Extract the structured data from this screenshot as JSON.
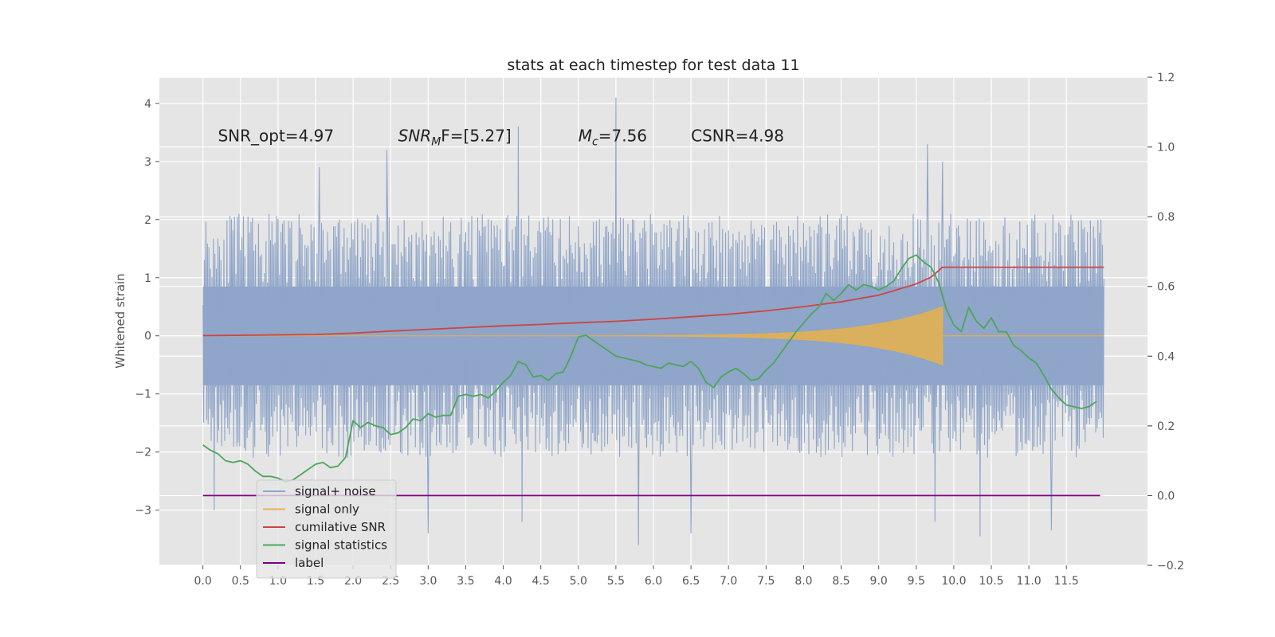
{
  "chart_data": {
    "type": "line",
    "title": "stats at each timestep for test data 11",
    "ylabel": "Whitened strain",
    "xlim": [
      -0.58,
      12.58
    ],
    "ylim": [
      -3.95,
      4.45
    ],
    "y2lim": [
      -0.2,
      1.2
    ],
    "xticks": [
      "0.0",
      "0.5",
      "1.0",
      "1.5",
      "2.0",
      "2.5",
      "3.0",
      "3.5",
      "4.0",
      "4.5",
      "5.0",
      "5.5",
      "6.0",
      "6.5",
      "7.0",
      "7.5",
      "8.0",
      "8.5",
      "9.0",
      "9.5",
      "10.0",
      "10.5",
      "11.0",
      "11.5"
    ],
    "xtick_values": [
      0,
      0.5,
      1,
      1.5,
      2,
      2.5,
      3,
      3.5,
      4,
      4.5,
      5,
      5.5,
      6,
      6.5,
      7,
      7.5,
      8,
      8.5,
      9,
      9.5,
      10,
      10.5,
      11,
      11.5
    ],
    "yticks": [
      "−3",
      "−2",
      "−1",
      "0",
      "1",
      "2",
      "3",
      "4"
    ],
    "ytick_values": [
      -3,
      -2,
      -1,
      0,
      1,
      2,
      3,
      4
    ],
    "y2ticks": [
      "−0.2",
      "0.0",
      "0.2",
      "0.4",
      "0.6",
      "0.8",
      "1.0",
      "1.2"
    ],
    "y2tick_values": [
      -0.2,
      0,
      0.2,
      0.4,
      0.6,
      0.8,
      1.0,
      1.2
    ],
    "grid": true,
    "legend_position": "lower-left",
    "annotations": [
      {
        "text": "SNR_opt=4.97",
        "x": 0.2,
        "y": 3.35
      },
      {
        "text_main": "SNR",
        "text_sub": "M",
        "text_tail": "F=[5.27]",
        "x": 2.6,
        "y": 3.35
      },
      {
        "text_main": "M",
        "text_sub": "c",
        "text_tail": "=7.56",
        "x": 5.0,
        "y": 3.35
      },
      {
        "text": "CSNR=4.98",
        "x": 6.5,
        "y": 3.35
      }
    ],
    "series": [
      {
        "name": "signal+ noise",
        "color": "#8fa5c9",
        "axis": "left",
        "kind": "noise",
        "x_range": [
          0,
          12
        ],
        "envelope_hi": 2.2,
        "envelope_lo": -2.2,
        "peaks_hi": [
          [
            1.55,
            2.9
          ],
          [
            2.45,
            3.2
          ],
          [
            4.2,
            3.6
          ],
          [
            5.5,
            4.1
          ],
          [
            9.65,
            3.3
          ],
          [
            9.85,
            3.0
          ]
        ],
        "peaks_lo": [
          [
            0.15,
            -3.0
          ],
          [
            3.0,
            -3.4
          ],
          [
            4.25,
            -3.2
          ],
          [
            5.8,
            -3.6
          ],
          [
            6.5,
            -3.4
          ],
          [
            9.75,
            -3.2
          ],
          [
            10.35,
            -3.45
          ],
          [
            11.3,
            -3.35
          ]
        ]
      },
      {
        "name": "signal only",
        "color": "#e8b04a",
        "axis": "left",
        "kind": "chirp",
        "x_range": [
          0,
          9.85
        ],
        "amp_end": 0.5,
        "merger": 9.85
      },
      {
        "name": "cumilative SNR",
        "color": "#cc4444",
        "axis": "right",
        "x": [
          0,
          1,
          1.5,
          2,
          2.5,
          3,
          3.5,
          4,
          4.5,
          5,
          5.5,
          6,
          6.5,
          7,
          7.5,
          8,
          8.5,
          9,
          9.5,
          9.7,
          9.85,
          12
        ],
        "values": [
          0.459,
          0.461,
          0.462,
          0.466,
          0.472,
          0.477,
          0.482,
          0.487,
          0.491,
          0.496,
          0.5,
          0.506,
          0.513,
          0.52,
          0.53,
          0.542,
          0.556,
          0.575,
          0.607,
          0.627,
          0.655,
          0.655
        ]
      },
      {
        "name": "signal statistics",
        "color": "#4ca65a",
        "axis": "right",
        "x": [
          0,
          0.1,
          0.2,
          0.3,
          0.4,
          0.5,
          0.6,
          0.7,
          0.8,
          0.9,
          1.0,
          1.1,
          1.2,
          1.3,
          1.4,
          1.5,
          1.6,
          1.7,
          1.8,
          1.9,
          2.0,
          2.1,
          2.2,
          2.3,
          2.4,
          2.5,
          2.6,
          2.7,
          2.8,
          2.9,
          3.0,
          3.1,
          3.2,
          3.3,
          3.4,
          3.5,
          3.6,
          3.7,
          3.8,
          3.9,
          4.0,
          4.1,
          4.2,
          4.3,
          4.4,
          4.5,
          4.6,
          4.7,
          4.8,
          4.9,
          5.0,
          5.1,
          5.2,
          5.3,
          5.4,
          5.5,
          5.6,
          5.7,
          5.8,
          5.9,
          6.0,
          6.1,
          6.2,
          6.3,
          6.4,
          6.5,
          6.6,
          6.7,
          6.8,
          6.9,
          7.0,
          7.1,
          7.2,
          7.3,
          7.4,
          7.5,
          7.6,
          7.7,
          7.8,
          7.9,
          8.0,
          8.1,
          8.2,
          8.3,
          8.4,
          8.5,
          8.6,
          8.7,
          8.8,
          8.9,
          9.0,
          9.1,
          9.2,
          9.3,
          9.4,
          9.5,
          9.6,
          9.7,
          9.8,
          9.9,
          10.0,
          10.1,
          10.2,
          10.3,
          10.4,
          10.5,
          10.6,
          10.7,
          10.8,
          10.9,
          11.0,
          11.1,
          11.2,
          11.3,
          11.4,
          11.5,
          11.6,
          11.7,
          11.8,
          11.9
        ],
        "values": [
          0.145,
          0.13,
          0.12,
          0.1,
          0.095,
          0.1,
          0.09,
          0.07,
          0.055,
          0.055,
          0.05,
          0.04,
          0.045,
          0.06,
          0.075,
          0.09,
          0.095,
          0.08,
          0.085,
          0.11,
          0.215,
          0.195,
          0.21,
          0.2,
          0.195,
          0.175,
          0.18,
          0.195,
          0.22,
          0.215,
          0.235,
          0.225,
          0.23,
          0.23,
          0.285,
          0.29,
          0.285,
          0.29,
          0.28,
          0.3,
          0.325,
          0.345,
          0.385,
          0.375,
          0.34,
          0.345,
          0.33,
          0.35,
          0.355,
          0.4,
          0.455,
          0.46,
          0.445,
          0.43,
          0.415,
          0.4,
          0.395,
          0.39,
          0.385,
          0.375,
          0.37,
          0.365,
          0.38,
          0.375,
          0.37,
          0.385,
          0.365,
          0.325,
          0.31,
          0.34,
          0.355,
          0.365,
          0.35,
          0.33,
          0.335,
          0.36,
          0.38,
          0.41,
          0.44,
          0.47,
          0.495,
          0.52,
          0.54,
          0.58,
          0.56,
          0.58,
          0.605,
          0.59,
          0.605,
          0.6,
          0.59,
          0.6,
          0.615,
          0.65,
          0.68,
          0.69,
          0.67,
          0.655,
          0.61,
          0.535,
          0.49,
          0.47,
          0.54,
          0.5,
          0.48,
          0.51,
          0.47,
          0.47,
          0.43,
          0.415,
          0.395,
          0.38,
          0.345,
          0.305,
          0.28,
          0.26,
          0.255,
          0.25,
          0.255,
          0.27
        ]
      },
      {
        "name": "label",
        "color": "#800080",
        "axis": "right",
        "x": [
          0,
          11.95
        ],
        "values": [
          0,
          0
        ]
      }
    ]
  }
}
